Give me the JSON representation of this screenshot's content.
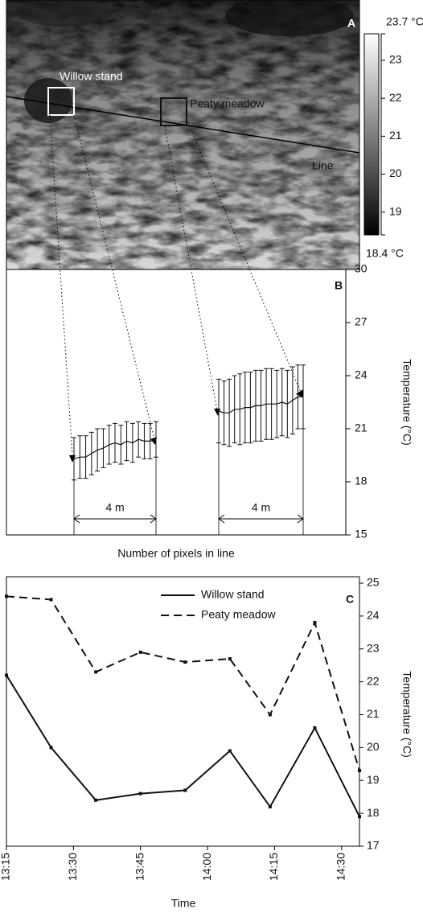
{
  "chart_data": [
    {
      "type": "image",
      "panel_label": "A",
      "annotations": [
        "Willow stand",
        "Peaty meadow",
        "Line"
      ],
      "ylim": [
        18.4,
        23.7
      ],
      "yticks": [
        {
          "value": 18.4,
          "label": "18.4 °C"
        },
        19,
        20,
        21,
        22,
        23,
        {
          "value": 23.7,
          "label": "23.7 °C"
        }
      ]
    },
    {
      "type": "errorbar",
      "panel_label": "B",
      "xlabel": "Number of pixels in line",
      "ylabel": "Temperature (°C)",
      "annotations": [
        "4 m",
        "4 m"
      ],
      "ylim": [
        15,
        30
      ],
      "yticks": [
        15,
        18,
        21,
        24,
        27,
        30
      ],
      "series": [
        {
          "color": "#111111",
          "values": [
            19.3,
            19.4,
            19.4,
            19.6,
            19.8,
            19.9,
            20.1,
            20.2,
            20.1,
            20.3,
            20.2,
            20.4,
            20.3,
            20.3,
            20.4
          ],
          "errors": [
            1.2,
            1.2,
            1.2,
            1.2,
            1.2,
            1.1,
            1.1,
            1.1,
            1.1,
            1.1,
            1.1,
            1.0,
            1.0,
            1.0,
            1.0
          ]
        },
        {
          "color": "#111111",
          "values": [
            22.0,
            21.9,
            21.9,
            22.1,
            22.1,
            22.2,
            22.2,
            22.3,
            22.3,
            22.4,
            22.4,
            22.4,
            22.5,
            22.4,
            22.6,
            22.8,
            22.8
          ],
          "errors": [
            1.8,
            1.8,
            1.9,
            1.9,
            2.0,
            2.0,
            2.0,
            2.0,
            2.0,
            2.0,
            2.0,
            1.9,
            1.9,
            1.9,
            1.9,
            1.8,
            1.8
          ]
        }
      ]
    },
    {
      "type": "line",
      "panel_label": "C",
      "xlabel": "Time",
      "ylabel": "Temperature (°C)",
      "x": [
        "13:15",
        "13:25",
        "13:35",
        "13:45",
        "13:55",
        "14:05",
        "14:14",
        "14:24",
        "14:34"
      ],
      "xlim": [
        "13:15",
        "14:34"
      ],
      "xticks": [
        "13:15",
        "13:30",
        "13:45",
        "14:00",
        "14:15",
        "14:30"
      ],
      "ylim": [
        17,
        25
      ],
      "yticks": [
        17,
        18,
        19,
        20,
        21,
        22,
        23,
        24,
        25
      ],
      "series": [
        {
          "name": "Willow stand",
          "color": "#111111",
          "dash": "solid",
          "values": [
            22.2,
            20.0,
            18.4,
            18.6,
            18.7,
            19.9,
            18.2,
            20.6,
            17.9
          ]
        },
        {
          "name": "Peaty meadow",
          "color": "#111111",
          "dash": "dashed",
          "values": [
            24.6,
            24.5,
            22.3,
            22.9,
            22.6,
            22.7,
            21.0,
            23.8,
            19.3
          ]
        }
      ]
    }
  ]
}
